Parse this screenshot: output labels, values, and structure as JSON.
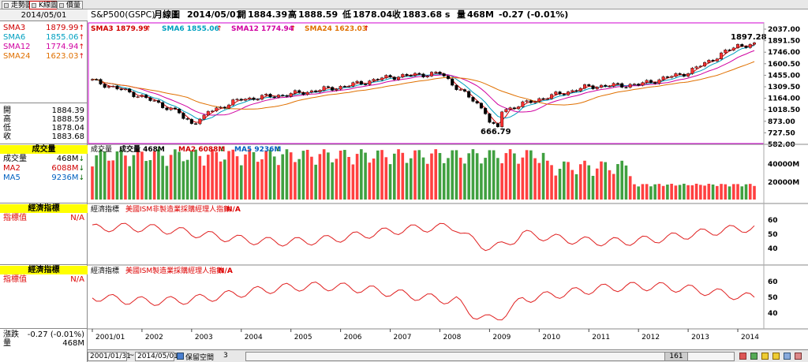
{
  "tabs": [
    {
      "label": "走勢圖"
    },
    {
      "label": "K線圖"
    },
    {
      "label": "價量"
    }
  ],
  "left": {
    "date": "2014/05/01",
    "sma": [
      {
        "label": "SMA3",
        "value": "1879.99",
        "color": "#d00000",
        "dir": "up"
      },
      {
        "label": "SMA6",
        "value": "1855.06",
        "color": "#00a0c0",
        "dir": "up"
      },
      {
        "label": "SMA12",
        "value": "1774.94",
        "color": "#d000a0",
        "dir": "up"
      },
      {
        "label": "SMA24",
        "value": "1623.03",
        "color": "#e07000",
        "dir": "up"
      }
    ],
    "ohlc": [
      {
        "label": "開",
        "value": "1884.39"
      },
      {
        "label": "高",
        "value": "1888.59"
      },
      {
        "label": "低",
        "value": "1878.04"
      },
      {
        "label": "收",
        "value": "1883.68"
      }
    ],
    "vol_header": "成交量",
    "vol_rows": [
      {
        "label": "成交量",
        "value": "468M",
        "color": "#000",
        "dir": "down"
      },
      {
        "label": "MA2",
        "value": "6088M",
        "color": "#d00000",
        "dir": "down"
      },
      {
        "label": "MA5",
        "value": "9236M",
        "color": "#0060c0",
        "dir": "down"
      }
    ],
    "econ1_header": "經濟指標",
    "econ1_row": {
      "label": "指標值",
      "value": "N/A"
    },
    "econ2_header": "經濟指標",
    "econ2_row": {
      "label": "指標值",
      "value": "N/A"
    },
    "change": {
      "label": "漲跌",
      "value": "-0.27 (-0.01%)"
    },
    "volume": {
      "label": "量",
      "value": "468M"
    }
  },
  "header": {
    "symbol": "S&P500(GSPC)",
    "type": "月線圖",
    "date": "2014/05/01",
    "open_label": "開",
    "open": "1884.39",
    "high_label": "高",
    "high": "1888.59",
    "low_label": "低",
    "low": "1878.04",
    "close_label": "收",
    "close": "1883.68 s",
    "vol_label": "量",
    "vol": "468M",
    "change": "-0.27 (-0.01%)"
  },
  "price_legend": [
    {
      "text": "SMA3 1879.99",
      "color": "#d00000"
    },
    {
      "text": "SMA6 1855.06",
      "color": "#00a0c0"
    },
    {
      "text": "SMA12 1774.94",
      "color": "#d000a0"
    },
    {
      "text": "SMA24 1623.03",
      "color": "#e07000"
    }
  ],
  "vol_legend": [
    {
      "text": "成交量",
      "color": "#000"
    },
    {
      "text": "成交量 468M",
      "color": "#000"
    },
    {
      "text": "MA2 6088M",
      "color": "#d00000"
    },
    {
      "text": "MA5 9236M",
      "color": "#0060c0"
    }
  ],
  "econ1_legend": {
    "title": "經濟指標",
    "series": "美國ISM非製造業採購經理人指數",
    "na": "N/A"
  },
  "econ2_legend": {
    "title": "經濟指標",
    "series": "美國ISM製造業採購經理人指數",
    "na": "N/A"
  },
  "price_axis": [
    "2037.00",
    "1891.50",
    "1746.00",
    "1600.50",
    "1455.00",
    "1309.50",
    "1164.00",
    "1018.50",
    "873.00",
    "727.50",
    "582.00"
  ],
  "vol_axis": [
    "40000M",
    "20000M"
  ],
  "econ1_axis": [
    "60",
    "50",
    "40"
  ],
  "econ2_axis": [
    "60",
    "50",
    "40"
  ],
  "price_annotations": {
    "high": "1897.28",
    "low": "666.79"
  },
  "years": [
    "2001/01",
    "2002",
    "2003",
    "2004",
    "2005",
    "2006",
    "2007",
    "2008",
    "2009",
    "2010",
    "2011",
    "2012",
    "2013",
    "2014"
  ],
  "bottom": {
    "start_date": "2001/01/31",
    "tilde": "~",
    "end_date": "2014/05/01",
    "keep_label": "保留空間",
    "keep_value": "3",
    "scroll_value": "161"
  },
  "chart_data": [
    {
      "type": "candlestick",
      "title": "S&P500(GSPC) 月線圖",
      "x": [
        "2001",
        "2002",
        "2003",
        "2004",
        "2005",
        "2006",
        "2007",
        "2008",
        "2009",
        "2010",
        "2011",
        "2012",
        "2013",
        "2014"
      ],
      "close": [
        1366,
        1148,
        855,
        1112,
        1181,
        1280,
        1418,
        1468,
        903,
        1115,
        1286,
        1312,
        1480,
        1848
      ],
      "annotations": {
        "high": 1897.28,
        "low": 666.79
      },
      "ylim": [
        582,
        2037
      ]
    },
    {
      "type": "bar",
      "title": "成交量",
      "ylim": [
        0,
        50000
      ],
      "unit": "M"
    },
    {
      "type": "line",
      "title": "美國ISM非製造業採購經理人指數",
      "ylim": [
        35,
        70
      ]
    },
    {
      "type": "line",
      "title": "美國ISM製造業採購經理人指數",
      "ylim": [
        30,
        65
      ]
    }
  ]
}
